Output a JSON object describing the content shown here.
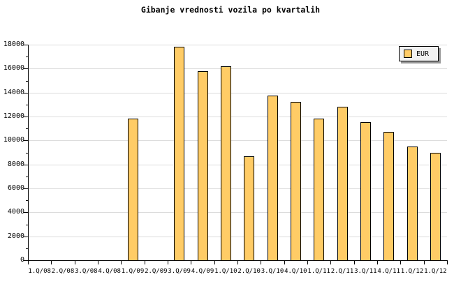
{
  "chart_data": {
    "type": "bar",
    "title": "Gibanje vrednosti vozila po kvartalih",
    "categories": [
      "1.Q/08",
      "2.Q/08",
      "3.Q/08",
      "4.Q/08",
      "1.Q/09",
      "2.Q/09",
      "3.Q/09",
      "4.Q/09",
      "1.Q/10",
      "2.Q/10",
      "3.Q/10",
      "4.Q/10",
      "1.Q/11",
      "2.Q/11",
      "3.Q/11",
      "4.Q/11",
      "1.Q/12",
      "1.Q/12"
    ],
    "series": [
      {
        "name": "EUR",
        "values": [
          null,
          null,
          null,
          null,
          11800,
          null,
          17800,
          15800,
          16200,
          8700,
          13750,
          13200,
          11800,
          12800,
          11550,
          10700,
          9500,
          9000
        ]
      }
    ],
    "xlabel": "",
    "ylabel": "",
    "ylim": [
      0,
      18000
    ],
    "ytick_major_step": 2000,
    "ytick_minor_step": 1000,
    "ytick_labels": [
      "0",
      "2000",
      "4000",
      "6000",
      "8000",
      "10000",
      "12000",
      "14000",
      "16000",
      "18000"
    ],
    "grid": "horizontal-major",
    "legend": {
      "label": "EUR",
      "position": "top-right"
    },
    "colors": {
      "bar_fill": "#FFCC66",
      "bar_border": "#000000",
      "gridline": "#DCDCDC",
      "axis": "#000000",
      "legend_bg": "#F2F2F2",
      "legend_shadow": "#999999",
      "background": "#FFFFFF",
      "text": "#000000"
    }
  }
}
